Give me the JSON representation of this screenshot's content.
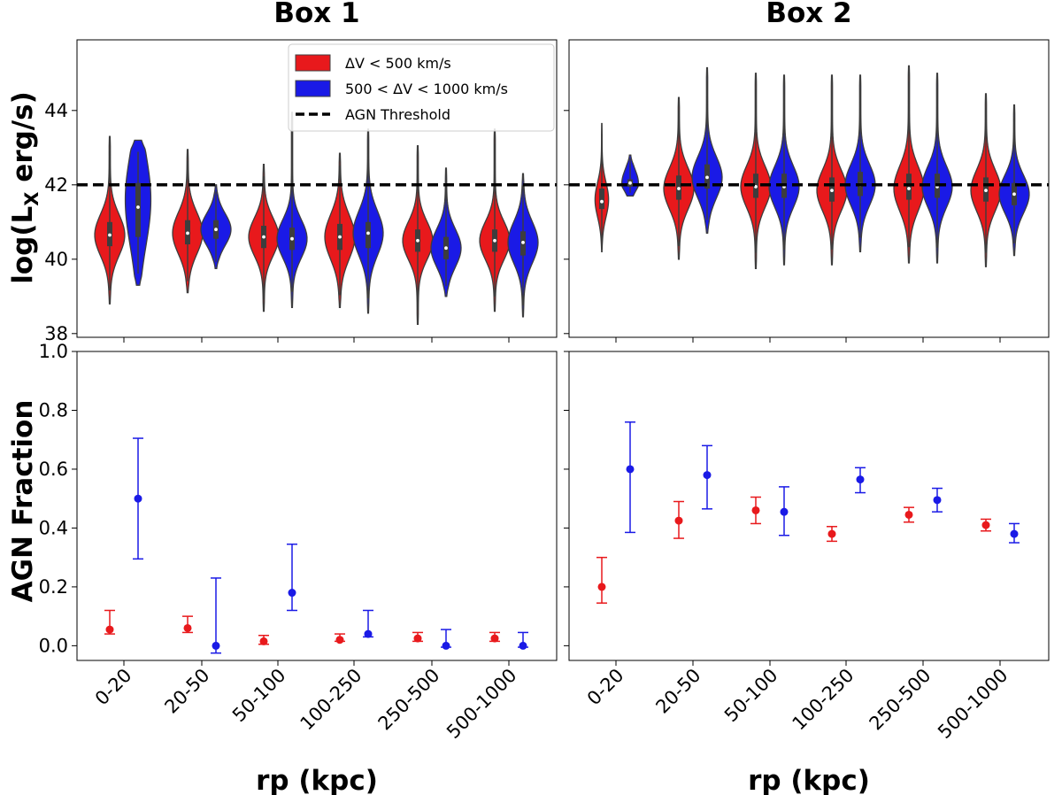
{
  "chart_data": {
    "type": "violin+errorbar",
    "panel_titles": [
      "Box 1",
      "Box 2"
    ],
    "categories": [
      "0-20",
      "20-50",
      "50-100",
      "100-250",
      "250-500",
      "500-1000"
    ],
    "xlabel": "rp (kpc)",
    "colors": {
      "red": "#e8191c",
      "blue": "#1a1ae6",
      "threshold": "#000000"
    },
    "legend": {
      "placement": "top-center",
      "entries": [
        {
          "label": "ΔV < 500 km/s",
          "color": "#e8191c"
        },
        {
          "label": "500 < ΔV < 1000 km/s",
          "color": "#1a1ae6"
        },
        {
          "label": "AGN Threshold",
          "color": "#000000",
          "style": "dashed"
        }
      ]
    },
    "top_row": {
      "ylabel_main": "log(L",
      "ylabel_sub": "X",
      "ylabel_rest": " erg/s)",
      "ylim": [
        37.9,
        45.9
      ],
      "yticks": [
        "38",
        "40",
        "42",
        "44"
      ],
      "agn_threshold": 42,
      "box1": {
        "red": [
          {
            "min": 38.8,
            "max": 43.3,
            "median": 40.65,
            "q1": 40.35,
            "q3": 41.0,
            "mode": 40.65,
            "width": 1.0
          },
          {
            "min": 39.1,
            "max": 42.95,
            "median": 40.7,
            "q1": 40.4,
            "q3": 41.05,
            "mode": 40.7,
            "width": 1.0
          },
          {
            "min": 38.6,
            "max": 42.55,
            "median": 40.6,
            "q1": 40.3,
            "q3": 40.9,
            "mode": 40.6,
            "width": 1.0
          },
          {
            "min": 38.7,
            "max": 42.85,
            "median": 40.6,
            "q1": 40.25,
            "q3": 40.95,
            "mode": 40.6,
            "width": 1.0
          },
          {
            "min": 38.25,
            "max": 43.05,
            "median": 40.5,
            "q1": 40.2,
            "q3": 40.8,
            "mode": 40.5,
            "width": 1.0
          },
          {
            "min": 38.6,
            "max": 43.5,
            "median": 40.5,
            "q1": 40.2,
            "q3": 40.8,
            "mode": 40.5,
            "width": 1.0
          }
        ],
        "blue": [
          {
            "min": 39.3,
            "max": 43.2,
            "median": 41.4,
            "q1": 40.6,
            "q3": 42.05,
            "mode": 41.6,
            "width": 0.85
          },
          {
            "min": 39.75,
            "max": 42.0,
            "median": 40.8,
            "q1": 40.55,
            "q3": 41.05,
            "mode": 40.8,
            "width": 1.0
          },
          {
            "min": 38.7,
            "max": 43.95,
            "median": 40.55,
            "q1": 40.25,
            "q3": 40.85,
            "mode": 40.55,
            "width": 1.0
          },
          {
            "min": 38.55,
            "max": 43.5,
            "median": 40.7,
            "q1": 40.3,
            "q3": 41.0,
            "mode": 40.7,
            "width": 1.0
          },
          {
            "min": 39.0,
            "max": 42.45,
            "median": 40.3,
            "q1": 40.0,
            "q3": 40.6,
            "mode": 40.3,
            "width": 1.0
          },
          {
            "min": 38.45,
            "max": 42.3,
            "median": 40.45,
            "q1": 40.1,
            "q3": 40.75,
            "mode": 40.45,
            "width": 1.0
          }
        ]
      },
      "box2": {
        "red": [
          {
            "min": 40.2,
            "max": 43.65,
            "median": 41.55,
            "q1": 41.35,
            "q3": 41.9,
            "mode": 41.6,
            "width": 0.45
          },
          {
            "min": 40.0,
            "max": 44.35,
            "median": 41.9,
            "q1": 41.6,
            "q3": 42.25,
            "mode": 41.9,
            "width": 1.0
          },
          {
            "min": 39.75,
            "max": 45.0,
            "median": 41.95,
            "q1": 41.65,
            "q3": 42.3,
            "mode": 41.95,
            "width": 1.0
          },
          {
            "min": 39.85,
            "max": 44.95,
            "median": 41.85,
            "q1": 41.55,
            "q3": 42.2,
            "mode": 41.85,
            "width": 1.0
          },
          {
            "min": 39.9,
            "max": 45.2,
            "median": 41.9,
            "q1": 41.6,
            "q3": 42.3,
            "mode": 41.9,
            "width": 1.0
          },
          {
            "min": 39.8,
            "max": 44.45,
            "median": 41.85,
            "q1": 41.55,
            "q3": 42.2,
            "mode": 41.85,
            "width": 1.0
          }
        ],
        "blue": [
          {
            "min": 41.7,
            "max": 42.8,
            "median": 42.05,
            "q1": 41.95,
            "q3": 42.15,
            "mode": 42.05,
            "width": 0.55
          },
          {
            "min": 40.7,
            "max": 45.15,
            "median": 42.2,
            "q1": 41.9,
            "q3": 42.55,
            "mode": 42.2,
            "width": 1.0
          },
          {
            "min": 39.85,
            "max": 44.95,
            "median": 41.95,
            "q1": 41.65,
            "q3": 42.3,
            "mode": 41.95,
            "width": 1.0
          },
          {
            "min": 40.2,
            "max": 44.95,
            "median": 42.0,
            "q1": 41.7,
            "q3": 42.35,
            "mode": 42.0,
            "width": 1.0
          },
          {
            "min": 39.9,
            "max": 45.0,
            "median": 41.95,
            "q1": 41.65,
            "q3": 42.3,
            "mode": 41.95,
            "width": 1.0
          },
          {
            "min": 40.1,
            "max": 44.15,
            "median": 41.75,
            "q1": 41.45,
            "q3": 42.05,
            "mode": 41.75,
            "width": 1.0
          }
        ]
      }
    },
    "bottom_row": {
      "ylabel": "AGN Fraction",
      "ylim": [
        -0.05,
        1.0
      ],
      "yticks": [
        "0.0",
        "0.2",
        "0.4",
        "0.6",
        "0.8",
        "1.0"
      ],
      "box1": {
        "red": [
          {
            "value": 0.055,
            "lower": 0.04,
            "upper": 0.12
          },
          {
            "value": 0.06,
            "lower": 0.045,
            "upper": 0.1
          },
          {
            "value": 0.015,
            "lower": 0.005,
            "upper": 0.035
          },
          {
            "value": 0.02,
            "lower": 0.015,
            "upper": 0.04
          },
          {
            "value": 0.025,
            "lower": 0.015,
            "upper": 0.045
          },
          {
            "value": 0.025,
            "lower": 0.015,
            "upper": 0.045
          }
        ],
        "blue": [
          {
            "value": 0.5,
            "lower": 0.295,
            "upper": 0.705
          },
          {
            "value": 0.0,
            "lower": -0.025,
            "upper": 0.23
          },
          {
            "value": 0.18,
            "lower": 0.12,
            "upper": 0.345
          },
          {
            "value": 0.04,
            "lower": 0.03,
            "upper": 0.12
          },
          {
            "value": 0.0,
            "lower": -0.005,
            "upper": 0.055
          },
          {
            "value": 0.0,
            "lower": -0.005,
            "upper": 0.045
          }
        ]
      },
      "box2": {
        "red": [
          {
            "value": 0.2,
            "lower": 0.145,
            "upper": 0.3
          },
          {
            "value": 0.425,
            "lower": 0.365,
            "upper": 0.49
          },
          {
            "value": 0.46,
            "lower": 0.415,
            "upper": 0.505
          },
          {
            "value": 0.38,
            "lower": 0.355,
            "upper": 0.405
          },
          {
            "value": 0.445,
            "lower": 0.42,
            "upper": 0.47
          },
          {
            "value": 0.41,
            "lower": 0.39,
            "upper": 0.43
          }
        ],
        "blue": [
          {
            "value": 0.6,
            "lower": 0.385,
            "upper": 0.76
          },
          {
            "value": 0.58,
            "lower": 0.465,
            "upper": 0.68
          },
          {
            "value": 0.455,
            "lower": 0.375,
            "upper": 0.54
          },
          {
            "value": 0.565,
            "lower": 0.52,
            "upper": 0.605
          },
          {
            "value": 0.495,
            "lower": 0.455,
            "upper": 0.535
          },
          {
            "value": 0.38,
            "lower": 0.35,
            "upper": 0.415
          }
        ]
      }
    }
  }
}
